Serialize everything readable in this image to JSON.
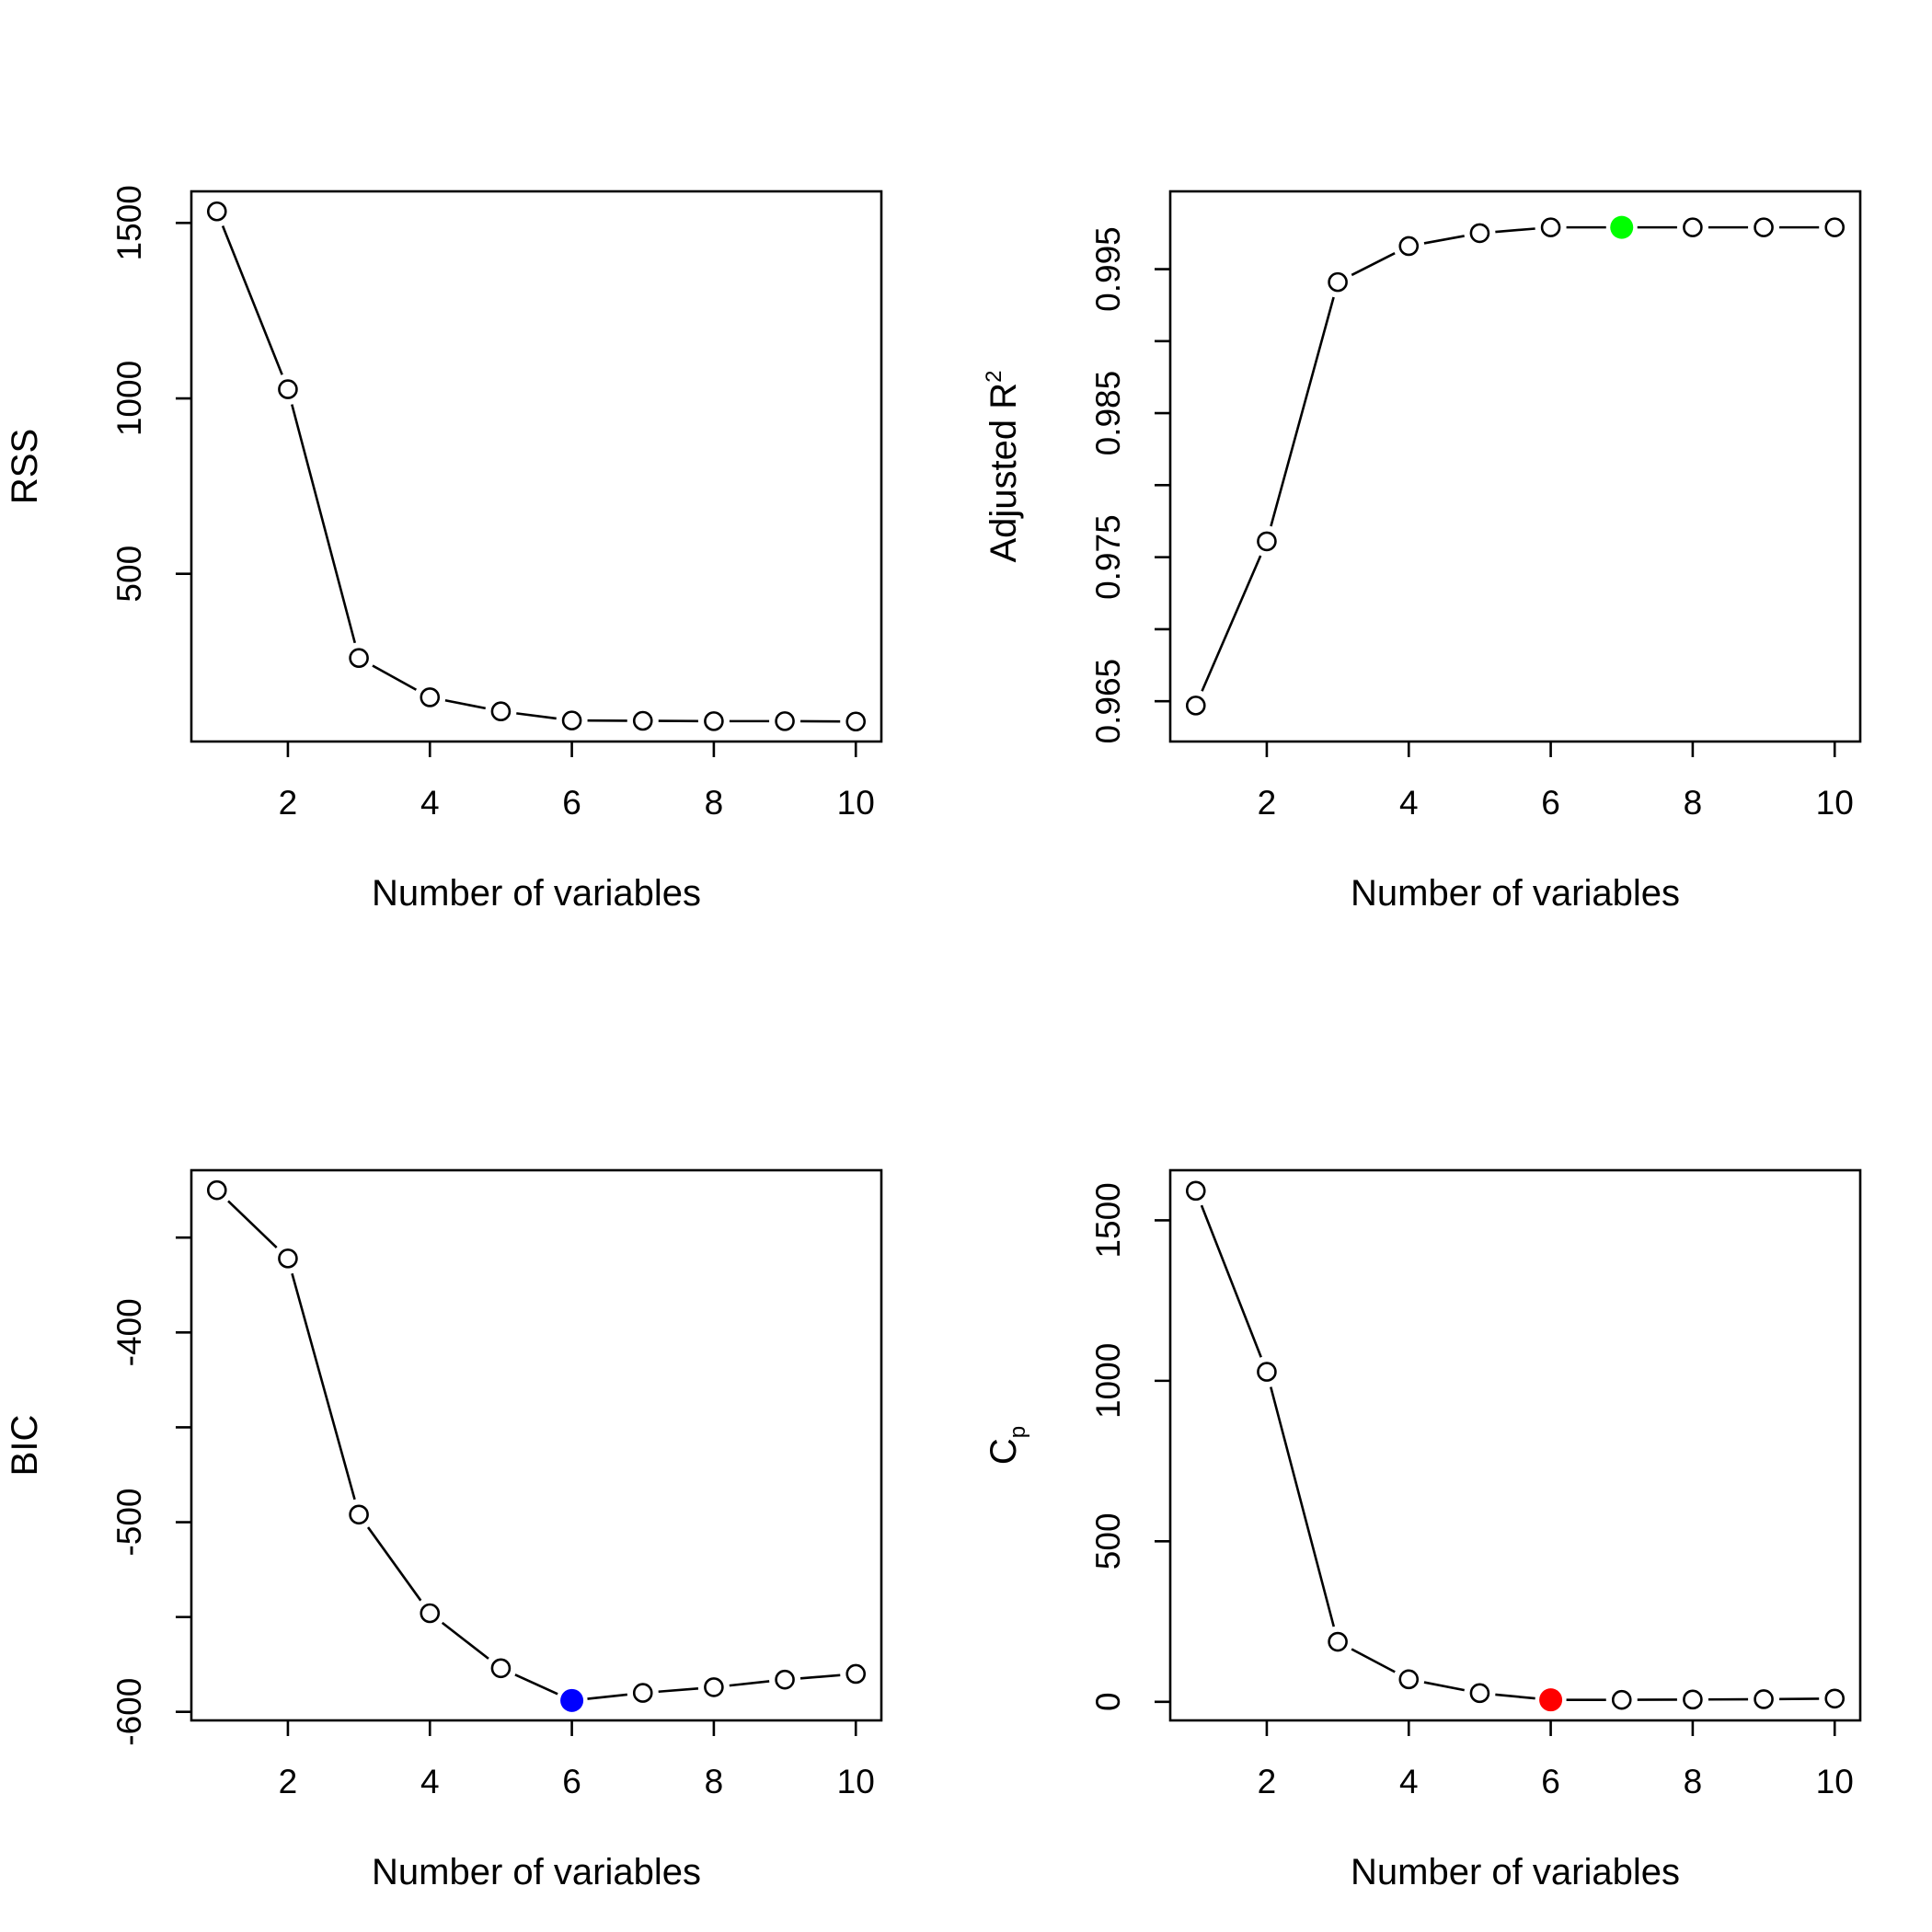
{
  "chart_data": [
    {
      "type": "line",
      "xlabel": "Number of variables",
      "ylabel": "RSS",
      "x": [
        1,
        2,
        3,
        4,
        5,
        6,
        7,
        8,
        9,
        10
      ],
      "series": [
        {
          "values": [
            1533,
            1026,
            260,
            148,
            108,
            82,
            81,
            80,
            80,
            79
          ]
        }
      ],
      "xlim": [
        0.64,
        10.36
      ],
      "ylim": [
        22,
        1590
      ],
      "xticks": [
        "2",
        "4",
        "6",
        "8",
        "10"
      ],
      "xtick_values": [
        2,
        4,
        6,
        8,
        10
      ],
      "yticks": [
        "500",
        "1000",
        "1500"
      ],
      "ytick_values": [
        500,
        1000,
        1500
      ],
      "highlight": null,
      "grid": false
    },
    {
      "type": "line",
      "xlabel": "Number of variables",
      "ylabel": "Adjusted R",
      "ylabel_superscript": "2",
      "x": [
        1,
        2,
        3,
        4,
        5,
        6,
        7,
        8,
        9,
        10
      ],
      "series": [
        {
          "values": [
            0.9647,
            0.9761,
            0.9941,
            0.9966,
            0.9975,
            0.9979,
            0.9979,
            0.9979,
            0.9979,
            0.9979
          ]
        }
      ],
      "xlim": [
        0.64,
        10.36
      ],
      "ylim": [
        0.9622,
        1.0004
      ],
      "xticks": [
        "2",
        "4",
        "6",
        "8",
        "10"
      ],
      "xtick_values": [
        2,
        4,
        6,
        8,
        10
      ],
      "yticks": [
        "0.965",
        "0.975",
        "0.985",
        "0.995"
      ],
      "ytick_values": [
        0.965,
        0.975,
        0.985,
        0.995
      ],
      "minor_ytick_values": [
        0.97,
        0.98,
        0.99
      ],
      "highlight": {
        "x": 7,
        "y": 0.9979,
        "color": "#00ff00"
      },
      "grid": false
    },
    {
      "type": "line",
      "xlabel": "Number of variables",
      "ylabel": "BIC",
      "x": [
        1,
        2,
        3,
        4,
        5,
        6,
        7,
        8,
        9,
        10
      ],
      "series": [
        {
          "values": [
            -325,
            -361,
            -496,
            -548,
            -577,
            -594,
            -590,
            -587,
            -583,
            -580
          ]
        }
      ],
      "xlim": [
        0.64,
        10.36
      ],
      "ylim": [
        -604.5,
        -314.5
      ],
      "xticks": [
        "2",
        "4",
        "6",
        "8",
        "10"
      ],
      "xtick_values": [
        2,
        4,
        6,
        8,
        10
      ],
      "yticks": [
        "-400",
        "-500",
        "-600"
      ],
      "ytick_values": [
        -400,
        -500,
        -600
      ],
      "minor_ytick_values": [
        -350,
        -450,
        -550
      ],
      "highlight": {
        "x": 6,
        "y": -594,
        "color": "#0000ff"
      },
      "grid": false
    },
    {
      "type": "line",
      "xlabel": "Number of variables",
      "ylabel": "C",
      "ylabel_subscript": "p",
      "x": [
        1,
        2,
        3,
        4,
        5,
        6,
        7,
        8,
        9,
        10
      ],
      "series": [
        {
          "values": [
            1592,
            1028,
            187,
            70,
            27,
            6,
            6,
            7,
            8,
            10
          ]
        }
      ],
      "xlim": [
        0.64,
        10.36
      ],
      "ylim": [
        -58,
        1656
      ],
      "xticks": [
        "2",
        "4",
        "6",
        "8",
        "10"
      ],
      "xtick_values": [
        2,
        4,
        6,
        8,
        10
      ],
      "yticks": [
        "0",
        "500",
        "1000",
        "1500"
      ],
      "ytick_values": [
        0,
        500,
        1000,
        1500
      ],
      "highlight": {
        "x": 6,
        "y": 6,
        "color": "#ff0000"
      },
      "grid": false
    }
  ]
}
